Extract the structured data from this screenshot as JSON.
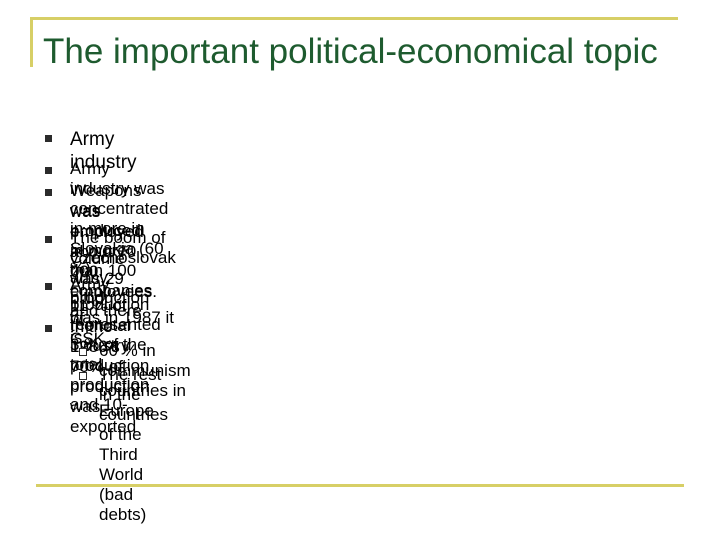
{
  "slide": {
    "title": "The important political-economical topic",
    "items": [
      {
        "text": "Army industry",
        "bullet_icon": "filled-square-bullet"
      },
      {
        "text": "Army industry was concentrated in more in Slovakia (60 %)",
        "bullet_icon": "filled-square-bullet"
      },
      {
        "text_line1": "Weapons was produced in more than 100 companies and there",
        "text_line2": "was employed about 70 000 employees.",
        "bullet_icon": "filled-square-bullet"
      },
      {
        "text_line1": "The boom of Czechoslovak army production was in 1987 it is",
        "text_line2": "volume was 29 billion of CSK.",
        "bullet_icon": "filled-square-bullet"
      },
      {
        "text_line1": "Army production represented 3 % of the total production and 10-",
        "text_line2": "11 % of the total industry production.",
        "bullet_icon": "filled-square-bullet"
      },
      {
        "text": "In the 1980’s 70% of production was exported",
        "bullet_icon": "filled-square-bullet",
        "subitems": [
          {
            "text": "60 % in communism countries in Europe",
            "bullet_icon": "hollow-square-bullet"
          },
          {
            "text": "The rest in the countries of the Third World (bad debts)",
            "bullet_icon": "hollow-square-bullet"
          }
        ]
      }
    ]
  },
  "colors": {
    "title": "#1e5b2f",
    "frame": "#d7cf66",
    "bullet": "#2b2b2b"
  }
}
